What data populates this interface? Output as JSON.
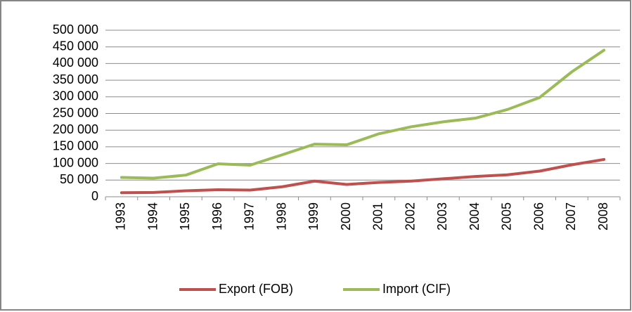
{
  "chart_data": {
    "type": "line",
    "categories": [
      "1993",
      "1994",
      "1995",
      "1996",
      "1997",
      "1998",
      "1999",
      "2000",
      "2001",
      "2002",
      "2003",
      "2004",
      "2005",
      "2006",
      "2007",
      "2008"
    ],
    "series": [
      {
        "name": "Export (FOB)",
        "color": "#c0504d",
        "values": [
          12000,
          13000,
          18000,
          21000,
          20000,
          30000,
          47000,
          37000,
          43000,
          47000,
          54000,
          61000,
          66000,
          77000,
          96000,
          112000
        ]
      },
      {
        "name": "Import (CIF)",
        "color": "#9bbb59",
        "values": [
          58000,
          56000,
          65000,
          99000,
          95000,
          126000,
          158000,
          156000,
          189000,
          210000,
          225000,
          236000,
          262000,
          298000,
          375000,
          440000
        ]
      }
    ],
    "ylim": [
      0,
      500000
    ],
    "yticks": [
      0,
      {
        "value": 50000,
        "label": "50 000"
      },
      {
        "value": 100000,
        "label": "100 000"
      },
      {
        "value": 150000,
        "label": "150 000"
      },
      {
        "value": 200000,
        "label": "200 000"
      },
      {
        "value": 250000,
        "label": "250 000"
      },
      {
        "value": 300000,
        "label": "300 000"
      },
      {
        "value": 350000,
        "label": "350 000"
      },
      {
        "value": 400000,
        "label": "400 000"
      },
      {
        "value": 450000,
        "label": "450 000"
      },
      {
        "value": 500000,
        "label": "500 000"
      }
    ],
    "grid": true,
    "legend": "bottom"
  }
}
